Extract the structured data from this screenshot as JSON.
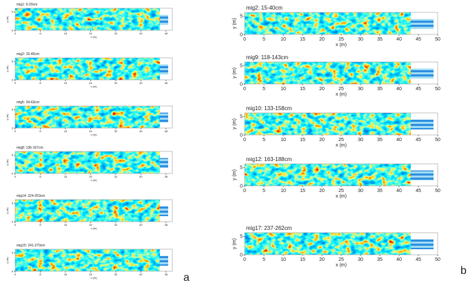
{
  "figure_a": {
    "label": "a",
    "xlim": [
      0,
      50
    ],
    "ylim": [
      0,
      6
    ],
    "xticks": [
      0,
      8,
      16,
      24,
      32,
      40,
      48
    ],
    "yticks": [
      0,
      5
    ],
    "x_label": "x (m)",
    "y_label": "y (m)",
    "panels": [
      {
        "title": "mig1: 0-20cm"
      },
      {
        "title": "mig2: 15-40cm"
      },
      {
        "title": "mig5: 34-63cm"
      },
      {
        "title": "mig8: 136-167cm"
      },
      {
        "title": "mig14: 224-253cm"
      },
      {
        "title": "mig15: 241-270cm"
      }
    ]
  },
  "figure_b": {
    "label": "b",
    "xlim": [
      0,
      50
    ],
    "ylim": [
      0,
      6
    ],
    "xticks": [
      0,
      5,
      10,
      15,
      20,
      25,
      30,
      35,
      40,
      45,
      50
    ],
    "yticks": [
      0,
      5
    ],
    "x_label": "x (m)",
    "y_label": "y (m)",
    "panels": [
      {
        "title": "mig2: 15-40cm"
      },
      {
        "title": "mig9: 118-143cm"
      },
      {
        "title": "mig10: 133-158cm"
      },
      {
        "title": "mig12: 163-188cm"
      },
      {
        "title": "mig17: 237-262cm"
      }
    ]
  }
}
